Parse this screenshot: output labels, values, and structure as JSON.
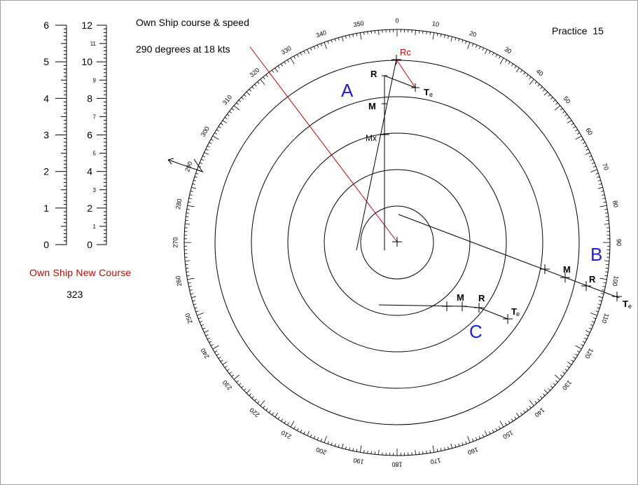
{
  "header": {
    "course_title": "Own Ship course & speed",
    "course_value": "290 degrees at 18 kts",
    "practice": "Practice  15"
  },
  "new_course": {
    "label": "Own Ship New Course",
    "value": "323"
  },
  "scales": {
    "left": {
      "min": 0,
      "max": 6,
      "labels": [
        "0",
        "1",
        "2",
        "3",
        "4",
        "5",
        "6"
      ]
    },
    "right": {
      "min": 0,
      "max": 12,
      "major_labels": [
        "0",
        "2",
        "4",
        "6",
        "8",
        "10",
        "12"
      ],
      "minor_labels": [
        "1",
        "3",
        "5",
        "7",
        "9",
        "11"
      ]
    }
  },
  "plot": {
    "ring_count": 5,
    "bearing_labels": [
      "0",
      "10",
      "20",
      "30",
      "40",
      "50",
      "60",
      "70",
      "80",
      "90",
      "100",
      "110",
      "120",
      "130",
      "140",
      "150",
      "160",
      "170",
      "180",
      "190",
      "200",
      "210",
      "220",
      "230",
      "240",
      "250",
      "260",
      "270",
      "280",
      "290",
      "300",
      "310",
      "320",
      "330",
      "340",
      "350"
    ],
    "point_labels": {
      "rc": "Rc",
      "mx": "Mx",
      "a": "A",
      "b": "B",
      "c": "C",
      "r": "R",
      "m": "M",
      "te_t": "T",
      "te_e": "e"
    }
  },
  "colors": {
    "ink": "#000000",
    "red": "#cc0000",
    "blue": "#1f1fcc",
    "border": "#a0a0a0"
  }
}
